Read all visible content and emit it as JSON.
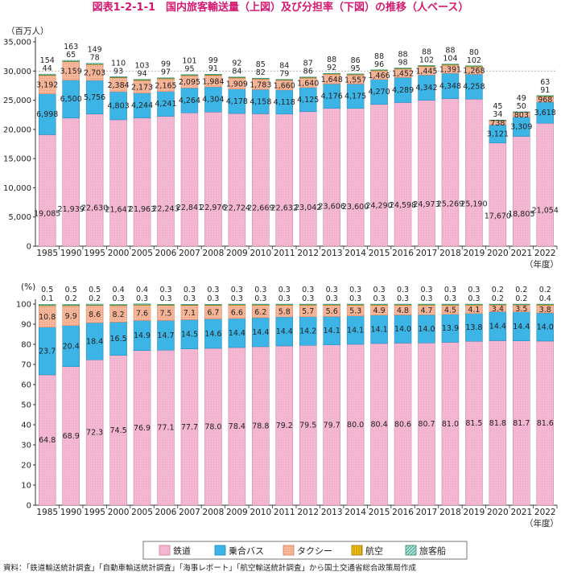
{
  "title": "図表1-2-1-1　国内旅客輸送量（上図）及び分担率（下図）の推移（人ベース）",
  "source": "資料：「鉄道輸送統計調査」「自動車輸送統計調査」「海事レポート」「航空輸送統計調査」から国土交通省総合政策局作成",
  "colors": {
    "rail": "#f4b8d2",
    "bus": "#3cb4e6",
    "taxi": "#f7b79a",
    "air": "#f5c518",
    "ship": "#8fd3c2"
  },
  "legend": [
    {
      "key": "rail",
      "label": "鉄道"
    },
    {
      "key": "bus",
      "label": "乗合バス"
    },
    {
      "key": "taxi",
      "label": "タクシー"
    },
    {
      "key": "air",
      "label": "航空"
    },
    {
      "key": "ship",
      "label": "旅客船"
    }
  ],
  "chart_data": [
    {
      "type": "bar",
      "stacked": true,
      "ylabel": "（百万人）",
      "xlabel": "（年度）",
      "ylim": [
        0,
        35000
      ],
      "yticks": [
        "0",
        "5,000",
        "10,000",
        "15,000",
        "20,000",
        "25,000",
        "30,000",
        "35,000"
      ],
      "categories": [
        "1985",
        "1990",
        "1995",
        "2000",
        "2005",
        "2006",
        "2007",
        "2008",
        "2009",
        "2010",
        "2011",
        "2012",
        "2013",
        "2014",
        "2015",
        "2016",
        "2017",
        "2018",
        "2019",
        "2020",
        "2021",
        "2022"
      ],
      "series": [
        {
          "key": "rail",
          "name": "鉄道",
          "values": [
            19085,
            21939,
            22630,
            21647,
            21963,
            22243,
            22841,
            22976,
            22724,
            22669,
            22632,
            23042,
            23606,
            23600,
            24290,
            24598,
            24973,
            25269,
            25190,
            17670,
            18805,
            21054
          ],
          "labels": [
            "19,085",
            "21,939",
            "22,630",
            "21,647",
            "21,963",
            "22,243",
            "22,841",
            "22,976",
            "22,724",
            "22,669",
            "22,632",
            "23,042",
            "23,606",
            "23,600",
            "24,290",
            "24,598",
            "24,973",
            "25,269",
            "25,190",
            "17,670",
            "18,805",
            "21,054"
          ]
        },
        {
          "key": "bus",
          "name": "乗合バス",
          "values": [
            6998,
            6500,
            5756,
            4803,
            4244,
            4241,
            4264,
            4304,
            4178,
            4158,
            4118,
            4125,
            4176,
            4175,
            4270,
            4289,
            4342,
            4348,
            4258,
            3121,
            3309,
            3618
          ],
          "labels": [
            "6,998",
            "6,500",
            "5,756",
            "4,803",
            "4,244",
            "4,241",
            "4,264",
            "4,304",
            "4,178",
            "4,158",
            "4,118",
            "4,125",
            "4,176",
            "4,175",
            "4,270",
            "4,289",
            "4,342",
            "4,348",
            "4,258",
            "3,121",
            "3,309",
            "3,618"
          ]
        },
        {
          "key": "taxi",
          "name": "タクシー",
          "values": [
            3192,
            3159,
            2703,
            2384,
            2173,
            2165,
            2095,
            1984,
            1909,
            1783,
            1660,
            1640,
            1648,
            1557,
            1466,
            1452,
            1445,
            1391,
            1268,
            738,
            803,
            968
          ],
          "labels": [
            "3,192",
            "3,159",
            "2,703",
            "2,384",
            "2,173",
            "2,165",
            "2,095",
            "1,984",
            "1,909",
            "1,783",
            "1,660",
            "1,640",
            "1,648",
            "1,557",
            "1,466",
            "1,452",
            "1,445",
            "1,391",
            "1,268",
            "738",
            "803",
            "968"
          ]
        },
        {
          "key": "air",
          "name": "航空",
          "values": [
            44,
            65,
            78,
            93,
            94,
            97,
            95,
            91,
            84,
            82,
            79,
            86,
            92,
            95,
            96,
            98,
            102,
            104,
            102,
            34,
            50,
            91
          ],
          "labels": [
            "44",
            "65",
            "78",
            "93",
            "94",
            "97",
            "95",
            "91",
            "84",
            "82",
            "79",
            "86",
            "92",
            "95",
            "96",
            "98",
            "102",
            "104",
            "102",
            "34",
            "50",
            "91"
          ]
        },
        {
          "key": "ship",
          "name": "旅客船",
          "values": [
            154,
            163,
            149,
            110,
            103,
            99,
            101,
            99,
            92,
            85,
            84,
            87,
            88,
            86,
            88,
            88,
            88,
            88,
            80,
            45,
            49,
            63
          ],
          "labels": [
            "154",
            "163",
            "149",
            "110",
            "103",
            "99",
            "101",
            "99",
            "92",
            "85",
            "84",
            "87",
            "88",
            "86",
            "88",
            "88",
            "88",
            "88",
            "80",
            "45",
            "49",
            "63"
          ]
        }
      ]
    },
    {
      "type": "bar",
      "stacked": true,
      "ylabel": "(%)",
      "xlabel": "（年度）",
      "ylim": [
        0,
        100
      ],
      "yticks": [
        "0",
        "10",
        "20",
        "30",
        "40",
        "50",
        "60",
        "70",
        "80",
        "90",
        "100"
      ],
      "categories": [
        "1985",
        "1990",
        "1995",
        "2000",
        "2005",
        "2006",
        "2007",
        "2008",
        "2009",
        "2010",
        "2011",
        "2012",
        "2013",
        "2014",
        "2015",
        "2016",
        "2017",
        "2018",
        "2019",
        "2020",
        "2021",
        "2022"
      ],
      "series": [
        {
          "key": "rail",
          "name": "鉄道",
          "values": [
            64.8,
            68.9,
            72.3,
            74.5,
            76.9,
            77.1,
            77.7,
            78.0,
            78.4,
            78.8,
            79.2,
            79.5,
            79.7,
            80.0,
            80.4,
            80.6,
            80.7,
            81.0,
            81.5,
            81.8,
            81.7,
            81.6
          ],
          "labels": [
            "64.8",
            "68.9",
            "72.3",
            "74.5",
            "76.9",
            "77.1",
            "77.7",
            "78.0",
            "78.4",
            "78.8",
            "79.2",
            "79.5",
            "79.7",
            "80.0",
            "80.4",
            "80.6",
            "80.7",
            "81.0",
            "81.5",
            "81.8",
            "81.7",
            "81.6"
          ]
        },
        {
          "key": "bus",
          "name": "乗合バス",
          "values": [
            23.7,
            20.4,
            18.4,
            16.5,
            14.9,
            14.7,
            14.5,
            14.6,
            14.4,
            14.4,
            14.4,
            14.2,
            14.1,
            14.1,
            14.1,
            14.0,
            14.0,
            13.9,
            13.8,
            14.4,
            14.4,
            14.0
          ],
          "labels": [
            "23.7",
            "20.4",
            "18.4",
            "16.5",
            "14.9",
            "14.7",
            "14.5",
            "14.6",
            "14.4",
            "14.4",
            "14.4",
            "14.2",
            "14.1",
            "14.1",
            "14.1",
            "14.0",
            "14.0",
            "13.9",
            "13.8",
            "14.4",
            "14.4",
            "14.0"
          ]
        },
        {
          "key": "taxi",
          "name": "タクシー",
          "values": [
            10.8,
            9.9,
            8.6,
            8.2,
            7.6,
            7.5,
            7.1,
            6.7,
            6.6,
            6.2,
            5.8,
            5.7,
            5.6,
            5.3,
            4.9,
            4.8,
            4.7,
            4.5,
            4.1,
            3.4,
            3.5,
            3.8
          ],
          "labels": [
            "10.8",
            "9.9",
            "8.6",
            "8.2",
            "7.6",
            "7.5",
            "7.1",
            "6.7",
            "6.6",
            "6.2",
            "5.8",
            "5.7",
            "5.6",
            "5.3",
            "4.9",
            "4.8",
            "4.7",
            "4.5",
            "4.1",
            "3.4",
            "3.5",
            "3.8"
          ]
        },
        {
          "key": "air",
          "name": "航空",
          "values": [
            0.1,
            0.2,
            0.2,
            0.3,
            0.3,
            0.3,
            0.3,
            0.3,
            0.3,
            0.3,
            0.3,
            0.3,
            0.3,
            0.3,
            0.3,
            0.3,
            0.3,
            0.3,
            0.3,
            0.2,
            0.2,
            0.4
          ],
          "labels": [
            "0.1",
            "0.2",
            "0.2",
            "0.3",
            "0.3",
            "0.3",
            "0.3",
            "0.3",
            "0.3",
            "0.3",
            "0.3",
            "0.3",
            "0.3",
            "0.3",
            "0.3",
            "0.3",
            "0.3",
            "0.3",
            "0.3",
            "0.2",
            "0.2",
            "0.4"
          ]
        },
        {
          "key": "ship",
          "name": "旅客船",
          "values": [
            0.5,
            0.5,
            0.5,
            0.4,
            0.4,
            0.3,
            0.3,
            0.3,
            0.3,
            0.3,
            0.3,
            0.3,
            0.3,
            0.3,
            0.3,
            0.3,
            0.3,
            0.3,
            0.3,
            0.2,
            0.2,
            0.2
          ],
          "labels": [
            "0.5",
            "0.5",
            "0.5",
            "0.4",
            "0.4",
            "0.3",
            "0.3",
            "0.3",
            "0.3",
            "0.3",
            "0.3",
            "0.3",
            "0.3",
            "0.3",
            "0.3",
            "0.3",
            "0.3",
            "0.3",
            "0.3",
            "0.2",
            "0.2",
            "0.2"
          ]
        }
      ]
    }
  ]
}
